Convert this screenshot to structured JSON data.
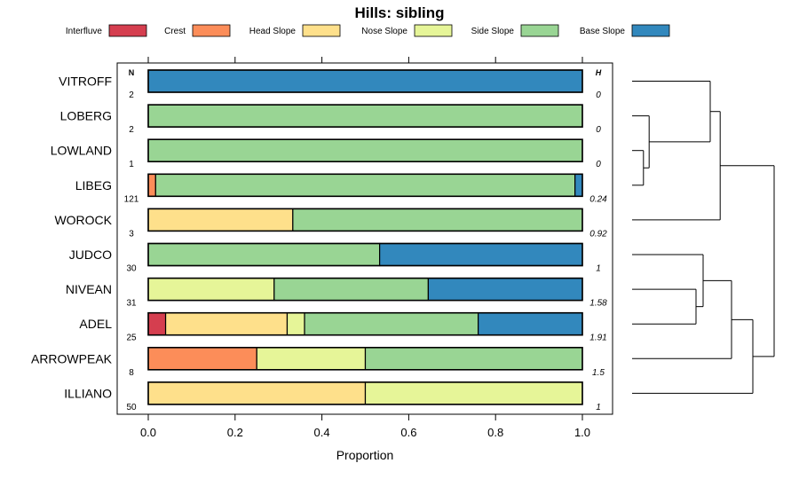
{
  "chart_data": {
    "type": "bar",
    "orientation": "horizontal",
    "stacked": true,
    "title": "Hills: sibling",
    "xlabel": "Proportion",
    "ylabel": "",
    "xlim": [
      0,
      1
    ],
    "xticks": [
      "0.0",
      "0.2",
      "0.4",
      "0.6",
      "0.8",
      "1.0"
    ],
    "xtick_values": [
      0,
      0.2,
      0.4,
      0.6,
      0.8,
      1.0
    ],
    "legend_position": "top",
    "n_header": "N",
    "h_header": "H",
    "categories": [
      "VITROFF",
      "LOBERG",
      "LOWLAND",
      "LIBEG",
      "WOROCK",
      "JUDCO",
      "NIVEAN",
      "ADEL",
      "ARROWPEAK",
      "ILLIANO"
    ],
    "n_values": [
      "2",
      "2",
      "1",
      "121",
      "3",
      "30",
      "31",
      "25",
      "8",
      "50"
    ],
    "h_values": [
      "0",
      "0",
      "0",
      "0.24",
      "0.92",
      "1",
      "1.58",
      "1.91",
      "1.5",
      "1"
    ],
    "series": [
      {
        "name": "Interfluve",
        "color": "#d53e4f",
        "values": [
          0,
          0,
          0,
          0,
          0,
          0,
          0,
          0.04,
          0,
          0
        ]
      },
      {
        "name": "Crest",
        "color": "#fc8d59",
        "values": [
          0,
          0,
          0,
          0.017,
          0,
          0,
          0,
          0,
          0.25,
          0
        ]
      },
      {
        "name": "Head Slope",
        "color": "#fee08b",
        "values": [
          0,
          0,
          0,
          0,
          0.333,
          0,
          0,
          0.28,
          0,
          0.5
        ]
      },
      {
        "name": "Nose Slope",
        "color": "#e6f598",
        "values": [
          0,
          0,
          0,
          0,
          0,
          0,
          0.29,
          0.04,
          0.25,
          0.5
        ]
      },
      {
        "name": "Side Slope",
        "color": "#99d594",
        "values": [
          0,
          1,
          1,
          0.966,
          0.667,
          0.533,
          0.355,
          0.4,
          0.5,
          0
        ]
      },
      {
        "name": "Base Slope",
        "color": "#3288bd",
        "values": [
          1,
          0,
          0,
          0.017,
          0,
          0.467,
          0.355,
          0.24,
          0,
          0
        ]
      }
    ],
    "dendrogram": {
      "leaves": [
        "VITROFF",
        "LOBERG",
        "LOWLAND",
        "LIBEG",
        "WOROCK",
        "JUDCO",
        "NIVEAN",
        "ADEL",
        "ARROWPEAK",
        "ILLIANO"
      ],
      "merges": [
        {
          "a": "LOWLAND",
          "b": "LIBEG",
          "height": 0.08
        },
        {
          "a": "LOBERG",
          "b": "[LOWLAND,LIBEG]",
          "height": 0.12
        },
        {
          "a": "VITROFF",
          "b": "[LOBERG,LOWLAND,LIBEG]",
          "height": 0.55
        },
        {
          "a": "[VITROFF..LIBEG]",
          "b": "WOROCK",
          "height": 0.62
        },
        {
          "a": "NIVEAN",
          "b": "ADEL",
          "height": 0.45
        },
        {
          "a": "JUDCO",
          "b": "[NIVEAN,ADEL]",
          "height": 0.5
        },
        {
          "a": "[JUDCO,NIVEAN,ADEL]",
          "b": "ARROWPEAK",
          "height": 0.7
        },
        {
          "a": "[JUDCO..ARROWPEAK]",
          "b": "ILLIANO",
          "height": 0.85
        },
        {
          "a": "[VITROFF..WOROCK]",
          "b": "[JUDCO..ILLIANO]",
          "height": 1.0
        }
      ]
    }
  }
}
